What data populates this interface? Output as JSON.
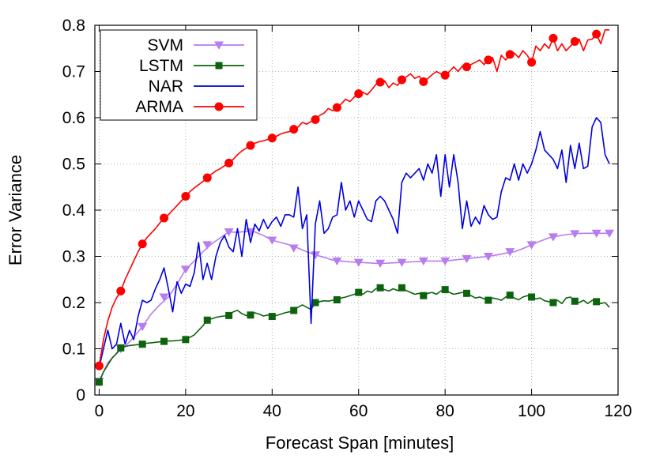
{
  "chart_data": {
    "type": "line",
    "xlabel": "Forecast Span [minutes]",
    "ylabel": "Error Variance",
    "xlim": [
      -1,
      120
    ],
    "ylim": [
      0,
      0.8
    ],
    "xticks": [
      0,
      20,
      40,
      60,
      80,
      100,
      120
    ],
    "yticks": [
      0,
      0.1,
      0.2,
      0.3,
      0.4,
      0.5,
      0.6,
      0.7,
      0.8
    ],
    "xtick_labels": [
      "0",
      "20",
      "40",
      "60",
      "80",
      "100",
      "120"
    ],
    "ytick_labels": [
      "0",
      "0.1",
      "0.2",
      "0.3",
      "0.4",
      "0.5",
      "0.6",
      "0.7",
      "0.8"
    ],
    "grid": true,
    "legend_position": "top-left",
    "series": [
      {
        "name": "SVM",
        "color": "#b77cf0",
        "marker": "triangle-down",
        "marker_x": [
          0,
          5,
          10,
          15,
          20,
          25,
          30,
          35,
          40,
          45,
          50,
          55,
          60,
          65,
          70,
          75,
          80,
          85,
          90,
          95,
          100,
          105,
          110,
          115,
          118
        ],
        "marker_y": [
          0.03,
          0.1,
          0.148,
          0.212,
          0.272,
          0.325,
          0.353,
          0.353,
          0.335,
          0.318,
          0.303,
          0.29,
          0.287,
          0.285,
          0.287,
          0.29,
          0.29,
          0.295,
          0.3,
          0.31,
          0.325,
          0.342,
          0.349,
          0.35,
          0.35
        ],
        "x": [
          0,
          2,
          4,
          6,
          8,
          10,
          12,
          14,
          16,
          18,
          20,
          22,
          24,
          26,
          28,
          30,
          32,
          34,
          36,
          38,
          40,
          42,
          44,
          46,
          48,
          50,
          52,
          54,
          56,
          58,
          60,
          62,
          64,
          66,
          68,
          70,
          72,
          74,
          76,
          78,
          80,
          82,
          84,
          86,
          88,
          90,
          92,
          94,
          96,
          98,
          100,
          102,
          104,
          106,
          108,
          110,
          112,
          114,
          116,
          118
        ],
        "y": [
          0.03,
          0.07,
          0.09,
          0.105,
          0.125,
          0.148,
          0.175,
          0.195,
          0.212,
          0.24,
          0.272,
          0.29,
          0.31,
          0.327,
          0.34,
          0.353,
          0.352,
          0.354,
          0.353,
          0.345,
          0.335,
          0.33,
          0.325,
          0.318,
          0.31,
          0.303,
          0.298,
          0.292,
          0.29,
          0.288,
          0.287,
          0.286,
          0.285,
          0.285,
          0.286,
          0.287,
          0.288,
          0.289,
          0.29,
          0.29,
          0.29,
          0.292,
          0.294,
          0.296,
          0.298,
          0.3,
          0.303,
          0.307,
          0.31,
          0.317,
          0.325,
          0.333,
          0.34,
          0.344,
          0.347,
          0.349,
          0.35,
          0.35,
          0.35,
          0.35
        ]
      },
      {
        "name": "LSTM",
        "color": "#0d630d",
        "marker": "square",
        "marker_x": [
          0,
          5,
          10,
          15,
          20,
          25,
          30,
          35,
          40,
          45,
          50,
          55,
          60,
          65,
          70,
          75,
          80,
          85,
          90,
          95,
          100,
          105,
          110,
          115
        ],
        "marker_y": [
          0.028,
          0.102,
          0.11,
          0.116,
          0.12,
          0.162,
          0.172,
          0.173,
          0.17,
          0.183,
          0.2,
          0.206,
          0.222,
          0.232,
          0.232,
          0.215,
          0.228,
          0.22,
          0.205,
          0.216,
          0.212,
          0.2,
          0.203,
          0.202
        ],
        "x": [
          0,
          1,
          2,
          3,
          4,
          5,
          6,
          7,
          8,
          9,
          10,
          11,
          12,
          13,
          14,
          15,
          16,
          17,
          18,
          19,
          20,
          21,
          22,
          23,
          24,
          25,
          26,
          27,
          28,
          29,
          30,
          31,
          32,
          33,
          34,
          35,
          36,
          37,
          38,
          39,
          40,
          41,
          42,
          43,
          44,
          45,
          46,
          47,
          48,
          49,
          50,
          51,
          52,
          53,
          54,
          55,
          56,
          57,
          58,
          59,
          60,
          61,
          62,
          63,
          64,
          65,
          66,
          67,
          68,
          69,
          70,
          71,
          72,
          73,
          74,
          75,
          76,
          77,
          78,
          79,
          80,
          81,
          82,
          83,
          84,
          85,
          86,
          87,
          88,
          89,
          90,
          91,
          92,
          93,
          94,
          95,
          96,
          97,
          98,
          99,
          100,
          101,
          102,
          103,
          104,
          105,
          106,
          107,
          108,
          109,
          110,
          111,
          112,
          113,
          114,
          115,
          116,
          117,
          118
        ],
        "y": [
          0.028,
          0.05,
          0.065,
          0.08,
          0.09,
          0.102,
          0.105,
          0.107,
          0.108,
          0.109,
          0.11,
          0.112,
          0.113,
          0.114,
          0.115,
          0.116,
          0.117,
          0.117,
          0.118,
          0.119,
          0.12,
          0.125,
          0.13,
          0.14,
          0.15,
          0.162,
          0.165,
          0.168,
          0.17,
          0.171,
          0.172,
          0.18,
          0.183,
          0.176,
          0.172,
          0.173,
          0.178,
          0.175,
          0.171,
          0.173,
          0.17,
          0.172,
          0.175,
          0.178,
          0.18,
          0.183,
          0.19,
          0.195,
          0.19,
          0.185,
          0.2,
          0.202,
          0.204,
          0.203,
          0.205,
          0.206,
          0.21,
          0.212,
          0.215,
          0.218,
          0.222,
          0.218,
          0.225,
          0.222,
          0.23,
          0.232,
          0.228,
          0.225,
          0.23,
          0.226,
          0.232,
          0.226,
          0.222,
          0.218,
          0.22,
          0.215,
          0.22,
          0.222,
          0.218,
          0.225,
          0.228,
          0.222,
          0.218,
          0.22,
          0.222,
          0.22,
          0.215,
          0.21,
          0.212,
          0.208,
          0.205,
          0.21,
          0.208,
          0.205,
          0.212,
          0.216,
          0.21,
          0.206,
          0.212,
          0.215,
          0.212,
          0.208,
          0.21,
          0.204,
          0.202,
          0.2,
          0.205,
          0.198,
          0.21,
          0.212,
          0.203,
          0.2,
          0.205,
          0.198,
          0.205,
          0.202,
          0.198,
          0.2,
          0.19
        ]
      },
      {
        "name": "NAR",
        "color": "#0000e0",
        "marker": "none",
        "x": [
          0,
          1,
          2,
          3,
          4,
          5,
          6,
          7,
          8,
          9,
          10,
          11,
          12,
          13,
          14,
          15,
          16,
          17,
          18,
          19,
          20,
          21,
          22,
          23,
          24,
          25,
          26,
          27,
          28,
          29,
          30,
          31,
          32,
          33,
          34,
          35,
          36,
          37,
          38,
          39,
          40,
          41,
          42,
          43,
          44,
          45,
          46,
          47,
          48,
          49,
          50,
          51,
          52,
          53,
          54,
          55,
          56,
          57,
          58,
          59,
          60,
          61,
          62,
          63,
          64,
          65,
          66,
          67,
          68,
          69,
          70,
          71,
          72,
          73,
          74,
          75,
          76,
          77,
          78,
          79,
          80,
          81,
          82,
          83,
          84,
          85,
          86,
          87,
          88,
          89,
          90,
          91,
          92,
          93,
          94,
          95,
          96,
          97,
          98,
          99,
          100,
          101,
          102,
          103,
          104,
          105,
          106,
          107,
          108,
          109,
          110,
          111,
          112,
          113,
          114,
          115,
          116,
          117,
          118
        ],
        "y": [
          0.06,
          0.1,
          0.14,
          0.1,
          0.11,
          0.155,
          0.11,
          0.14,
          0.12,
          0.17,
          0.205,
          0.2,
          0.205,
          0.23,
          0.25,
          0.275,
          0.23,
          0.18,
          0.245,
          0.22,
          0.24,
          0.235,
          0.265,
          0.33,
          0.25,
          0.285,
          0.25,
          0.3,
          0.33,
          0.345,
          0.32,
          0.31,
          0.36,
          0.3,
          0.38,
          0.33,
          0.37,
          0.355,
          0.38,
          0.36,
          0.375,
          0.385,
          0.365,
          0.39,
          0.39,
          0.385,
          0.45,
          0.36,
          0.39,
          0.155,
          0.37,
          0.42,
          0.35,
          0.36,
          0.385,
          0.39,
          0.46,
          0.4,
          0.42,
          0.385,
          0.42,
          0.4,
          0.38,
          0.375,
          0.42,
          0.43,
          0.42,
          0.4,
          0.38,
          0.35,
          0.46,
          0.48,
          0.47,
          0.48,
          0.49,
          0.465,
          0.5,
          0.48,
          0.52,
          0.43,
          0.52,
          0.45,
          0.52,
          0.46,
          0.36,
          0.42,
          0.365,
          0.385,
          0.37,
          0.41,
          0.39,
          0.38,
          0.385,
          0.44,
          0.47,
          0.465,
          0.5,
          0.465,
          0.5,
          0.48,
          0.5,
          0.53,
          0.57,
          0.53,
          0.52,
          0.51,
          0.49,
          0.53,
          0.46,
          0.54,
          0.49,
          0.545,
          0.49,
          0.495,
          0.58,
          0.6,
          0.59,
          0.52,
          0.5
        ]
      },
      {
        "name": "ARMA",
        "color": "#ff0000",
        "marker": "circle",
        "marker_x": [
          0,
          5,
          10,
          15,
          20,
          25,
          30,
          35,
          40,
          45,
          50,
          55,
          60,
          65,
          70,
          75,
          80,
          85,
          90,
          95,
          100,
          105,
          110,
          115
        ],
        "marker_y": [
          0.063,
          0.225,
          0.327,
          0.383,
          0.43,
          0.47,
          0.502,
          0.54,
          0.556,
          0.575,
          0.596,
          0.622,
          0.652,
          0.677,
          0.682,
          0.678,
          0.692,
          0.71,
          0.725,
          0.737,
          0.72,
          0.772,
          0.765,
          0.781
        ],
        "x": [
          0,
          1,
          2,
          3,
          4,
          5,
          6,
          7,
          8,
          9,
          10,
          11,
          12,
          13,
          14,
          15,
          16,
          17,
          18,
          19,
          20,
          21,
          22,
          23,
          24,
          25,
          26,
          27,
          28,
          29,
          30,
          31,
          32,
          33,
          34,
          35,
          36,
          37,
          38,
          39,
          40,
          41,
          42,
          43,
          44,
          45,
          46,
          47,
          48,
          49,
          50,
          51,
          52,
          53,
          54,
          55,
          56,
          57,
          58,
          59,
          60,
          61,
          62,
          63,
          64,
          65,
          66,
          67,
          68,
          69,
          70,
          71,
          72,
          73,
          74,
          75,
          76,
          77,
          78,
          79,
          80,
          81,
          82,
          83,
          84,
          85,
          86,
          87,
          88,
          89,
          90,
          91,
          92,
          93,
          94,
          95,
          96,
          97,
          98,
          99,
          100,
          101,
          102,
          103,
          104,
          105,
          106,
          107,
          108,
          109,
          110,
          111,
          112,
          113,
          114,
          115,
          116,
          117,
          118
        ],
        "y": [
          0.063,
          0.12,
          0.16,
          0.19,
          0.21,
          0.225,
          0.25,
          0.27,
          0.29,
          0.31,
          0.327,
          0.34,
          0.35,
          0.36,
          0.372,
          0.383,
          0.39,
          0.4,
          0.41,
          0.42,
          0.43,
          0.44,
          0.448,
          0.455,
          0.462,
          0.47,
          0.478,
          0.485,
          0.49,
          0.496,
          0.502,
          0.51,
          0.52,
          0.528,
          0.534,
          0.54,
          0.545,
          0.548,
          0.55,
          0.553,
          0.556,
          0.56,
          0.565,
          0.568,
          0.57,
          0.575,
          0.58,
          0.59,
          0.586,
          0.592,
          0.596,
          0.605,
          0.61,
          0.62,
          0.615,
          0.622,
          0.63,
          0.64,
          0.635,
          0.645,
          0.652,
          0.655,
          0.65,
          0.66,
          0.672,
          0.677,
          0.68,
          0.665,
          0.675,
          0.67,
          0.682,
          0.688,
          0.695,
          0.685,
          0.69,
          0.678,
          0.685,
          0.693,
          0.7,
          0.695,
          0.692,
          0.7,
          0.71,
          0.7,
          0.712,
          0.71,
          0.715,
          0.72,
          0.725,
          0.715,
          0.725,
          0.73,
          0.7,
          0.735,
          0.725,
          0.737,
          0.74,
          0.73,
          0.745,
          0.735,
          0.72,
          0.755,
          0.745,
          0.76,
          0.75,
          0.772,
          0.745,
          0.76,
          0.745,
          0.755,
          0.765,
          0.77,
          0.745,
          0.768,
          0.77,
          0.781,
          0.76,
          0.79,
          0.79
        ]
      }
    ]
  }
}
